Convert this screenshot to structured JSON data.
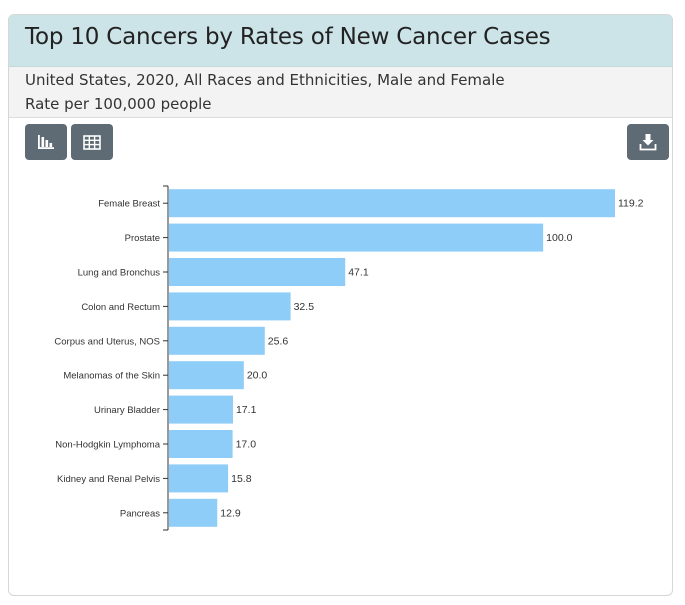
{
  "header": {
    "title": "Top 10 Cancers by Rates of New Cancer Cases",
    "subtitle_line1": "United States, 2020, All Races and Ethnicities, Male and Female",
    "subtitle_line2": "Rate per 100,000 people"
  },
  "toolbar": {
    "chart_view_icon": "bar-chart-icon",
    "table_view_icon": "table-grid-icon",
    "download_icon": "download-icon",
    "button_color": "#5f6b74"
  },
  "chart_data": {
    "type": "bar",
    "orientation": "horizontal",
    "categories": [
      "Female Breast",
      "Prostate",
      "Lung and Bronchus",
      "Colon and Rectum",
      "Corpus and Uterus, NOS",
      "Melanomas of the Skin",
      "Urinary Bladder",
      "Non-Hodgkin Lymphoma",
      "Kidney and Renal Pelvis",
      "Pancreas"
    ],
    "values": [
      119.2,
      100.0,
      47.1,
      32.5,
      25.6,
      20.0,
      17.1,
      17.0,
      15.8,
      12.9
    ],
    "value_labels": [
      "119.2",
      "100.0",
      "47.1",
      "32.5",
      "25.6",
      "20.0",
      "17.1",
      "17.0",
      "15.8",
      "12.9"
    ],
    "xlim": [
      0,
      125
    ],
    "grid": false,
    "bar_color": "#8ecdf8"
  }
}
